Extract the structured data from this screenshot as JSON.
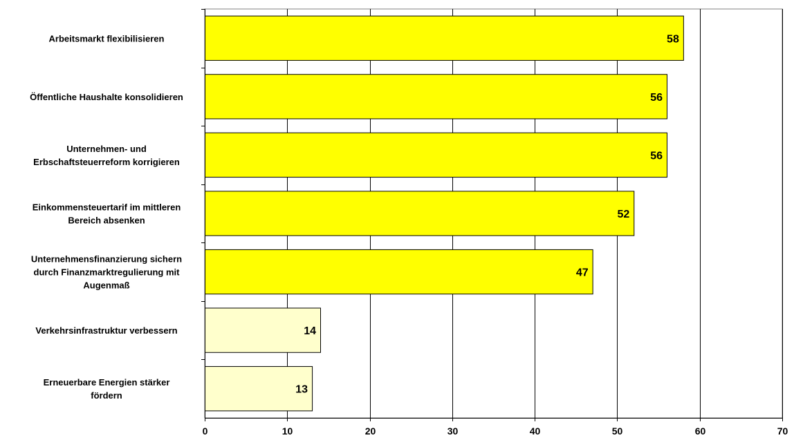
{
  "chart_data": {
    "type": "bar",
    "orientation": "horizontal",
    "title": "",
    "xlabel": "",
    "ylabel": "",
    "xlim": [
      0,
      70
    ],
    "x_ticks": [
      0,
      10,
      20,
      30,
      40,
      50,
      60,
      70
    ],
    "grid": "vertical",
    "legend": "none",
    "categories": [
      [
        "Arbeitsmarkt flexibilisieren"
      ],
      [
        "Öffentliche Haushalte konsolidieren"
      ],
      [
        "Unternehmen- und",
        "Erbschaftsteuerreform korrigieren"
      ],
      [
        "Einkommensteuertarif im mittleren",
        "Bereich absenken"
      ],
      [
        "Unternehmensfinanzierung sichern",
        "durch Finanzmarktregulierung mit",
        "Augenmaß"
      ],
      [
        "Verkehrsinfrastruktur verbessern"
      ],
      [
        "Erneuerbare Energien stärker",
        "fördern"
      ]
    ],
    "values": [
      58,
      56,
      56,
      52,
      47,
      14,
      13
    ],
    "bar_colors": [
      "#ffff00",
      "#ffff00",
      "#ffff00",
      "#ffff00",
      "#ffff00",
      "#ffffcc",
      "#ffffcc"
    ],
    "border_color": "#000000",
    "grid_color": "#000000"
  }
}
